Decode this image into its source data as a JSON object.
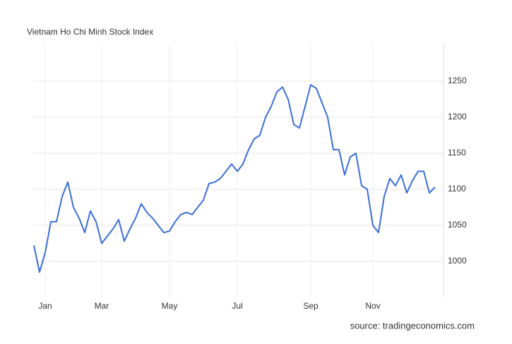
{
  "chart_data": {
    "type": "line",
    "title": "Vietnam Ho Chi Minh Stock Index",
    "source": "source: tradingeconomics.com",
    "categories": [
      null,
      null,
      "Jan",
      null,
      null,
      null,
      null,
      null,
      null,
      null,
      null,
      null,
      "Mar",
      null,
      null,
      null,
      null,
      null,
      null,
      null,
      null,
      null,
      null,
      null,
      "May",
      null,
      null,
      null,
      null,
      null,
      null,
      null,
      null,
      null,
      null,
      null,
      "Jul",
      null,
      null,
      null,
      null,
      null,
      null,
      null,
      null,
      null,
      null,
      null,
      null,
      "Sep",
      null,
      null,
      null,
      null,
      null,
      null,
      null,
      null,
      null,
      null,
      "Nov",
      null,
      null,
      null,
      null,
      null,
      null,
      null,
      null,
      null,
      null,
      null
    ],
    "series": [
      {
        "name": "Vietnam Ho Chi Minh Stock Index",
        "color": "#3a6fd8",
        "values": [
          1022,
          985,
          1012,
          1055,
          1055,
          1090,
          1110,
          1075,
          1060,
          1040,
          1070,
          1055,
          1025,
          1035,
          1045,
          1058,
          1028,
          1045,
          1060,
          1080,
          1068,
          1060,
          1050,
          1040,
          1042,
          1055,
          1065,
          1068,
          1065,
          1075,
          1085,
          1108,
          1110,
          1115,
          1125,
          1135,
          1125,
          1135,
          1155,
          1170,
          1175,
          1200,
          1215,
          1235,
          1242,
          1225,
          1190,
          1185,
          1215,
          1245,
          1240,
          1220,
          1200,
          1155,
          1155,
          1120,
          1145,
          1150,
          1105,
          1100,
          1050,
          1040,
          1090,
          1115,
          1105,
          1120,
          1095,
          1112,
          1125,
          1125,
          1095,
          1103
        ]
      }
    ],
    "ylim": [
      951,
      1302
    ],
    "yticks": [
      1000,
      1050,
      1100,
      1150,
      1200,
      1250
    ],
    "grid": true
  }
}
